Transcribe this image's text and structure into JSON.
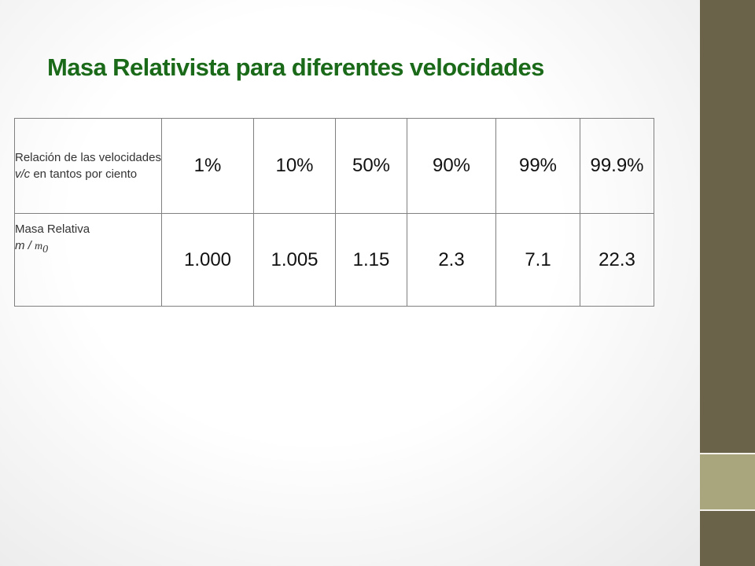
{
  "slide": {
    "title": "Masa Relativista para diferentes velocidades"
  },
  "table": {
    "row1": {
      "label_text": "Relación de las velocidades ",
      "label_var": "v/c",
      "label_tail": " en tantos por ciento",
      "values": [
        "1%",
        "10%",
        "50%",
        "90%",
        "99%",
        "99.9%"
      ]
    },
    "row2": {
      "label_text": "Masa Relativa",
      "label_var": "m / ",
      "label_sym": "m",
      "label_sub": "0",
      "values": [
        "1.000",
        "1.005",
        "1.15",
        "2.3",
        "7.1",
        "22.3"
      ]
    }
  },
  "theme": {
    "title_color": "#1a6a1a",
    "sidebar_color": "#6b624a",
    "sidebar_accent_color": "#a9a57c"
  }
}
